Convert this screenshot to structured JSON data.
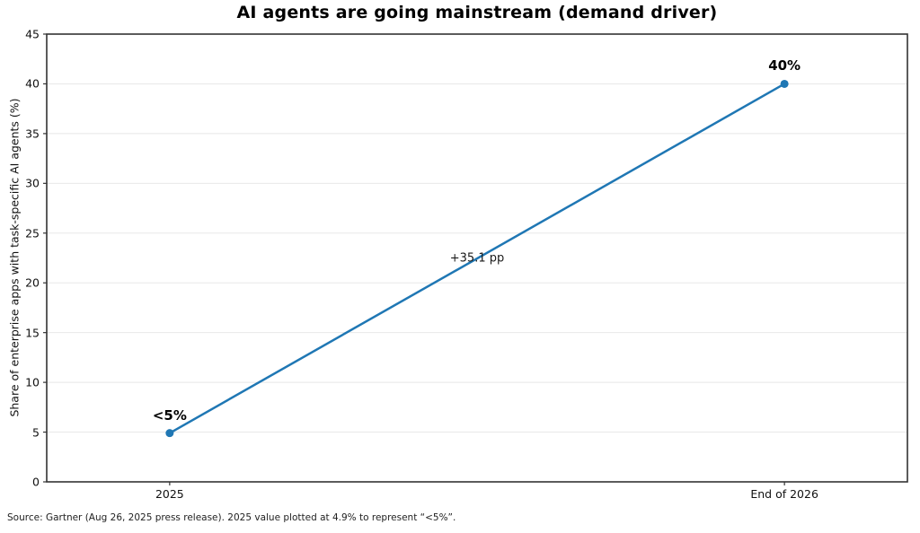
{
  "source_note": "Source: Gartner (Aug 26, 2025 press release). 2025 value plotted at 4.9% to represent “<5%”.",
  "chart_data": {
    "type": "line",
    "title": "AI agents are going mainstream (demand driver)",
    "ylabel": "Share of enterprise apps with task-specific AI agents (%)",
    "xlabel": "",
    "x": [
      0,
      1
    ],
    "categories": [
      "2025",
      "End of 2026"
    ],
    "values": [
      4.9,
      40
    ],
    "point_labels": [
      "<5%",
      "40%"
    ],
    "midpoint_annotation": "+35.1 pp",
    "ylim": [
      0,
      45
    ],
    "xlim": [
      -0.2,
      1.2
    ],
    "yticks": [
      0,
      5,
      10,
      15,
      20,
      25,
      30,
      35,
      40,
      45
    ],
    "grid": "horizontal",
    "legend": "none",
    "line_color": "#1f77b4",
    "marker_color": "#1f77b4",
    "grid_color": "#e8e8e8",
    "spine_color": "#333333"
  }
}
